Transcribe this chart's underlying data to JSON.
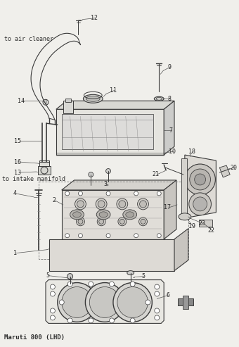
{
  "title": "Maruti 800 (LHD)",
  "bg_color": "#f0efeb",
  "line_color": "#3a3a3a",
  "text_color": "#2a2a2a",
  "fig_width": 3.4,
  "fig_height": 4.93,
  "dpi": 100
}
